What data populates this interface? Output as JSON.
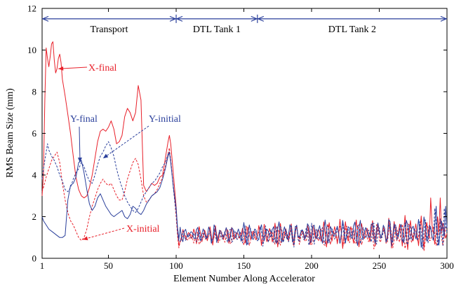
{
  "chart_data": {
    "type": "line",
    "xlabel": "Element Number Along Accelerator",
    "ylabel": "RMS Beam Size (mm)",
    "xlim": [
      1,
      300
    ],
    "ylim": [
      0,
      12
    ],
    "xticks": [
      1,
      50,
      100,
      150,
      200,
      250,
      300
    ],
    "yticks": [
      0,
      2,
      4,
      6,
      8,
      10,
      12
    ],
    "grid": false,
    "regions": [
      {
        "label": "Transport",
        "from": 1,
        "to": 100
      },
      {
        "label": "DTL Tank 1",
        "from": 100,
        "to": 160
      },
      {
        "label": "DTL Tank 2",
        "from": 160,
        "to": 300
      }
    ],
    "region_y": 11.5,
    "colors": {
      "x": "#e8202a",
      "y": "#2a3f9b"
    },
    "series": [
      {
        "key": "x-final",
        "color": "#e8202a",
        "style": "solid",
        "transport": [
          [
            1,
            3.0
          ],
          [
            2,
            4.0
          ],
          [
            3,
            7.6
          ],
          [
            4,
            10.1
          ],
          [
            5,
            9.6
          ],
          [
            6,
            9.2
          ],
          [
            7,
            9.7
          ],
          [
            8,
            10.3
          ],
          [
            9,
            10.4
          ],
          [
            10,
            9.5
          ],
          [
            11,
            8.9
          ],
          [
            12,
            9.1
          ],
          [
            13,
            9.6
          ],
          [
            14,
            9.8
          ],
          [
            15,
            9.4
          ],
          [
            16,
            8.6
          ],
          [
            18,
            7.8
          ],
          [
            20,
            6.9
          ],
          [
            22,
            6.0
          ],
          [
            24,
            4.9
          ],
          [
            26,
            3.9
          ],
          [
            28,
            3.3
          ],
          [
            30,
            3.0
          ],
          [
            32,
            2.9
          ],
          [
            34,
            3.0
          ],
          [
            36,
            3.4
          ],
          [
            38,
            4.0
          ],
          [
            40,
            4.8
          ],
          [
            42,
            5.6
          ],
          [
            44,
            6.1
          ],
          [
            46,
            6.2
          ],
          [
            48,
            6.1
          ],
          [
            50,
            6.3
          ],
          [
            52,
            6.6
          ],
          [
            54,
            6.2
          ],
          [
            56,
            5.5
          ],
          [
            58,
            5.6
          ],
          [
            60,
            5.9
          ],
          [
            62,
            6.8
          ],
          [
            64,
            7.2
          ],
          [
            66,
            7.0
          ],
          [
            68,
            6.6
          ],
          [
            70,
            7.0
          ],
          [
            72,
            8.3
          ],
          [
            74,
            7.6
          ],
          [
            75,
            5.5
          ],
          [
            76,
            3.5
          ],
          [
            78,
            3.2
          ],
          [
            80,
            3.4
          ],
          [
            82,
            3.6
          ],
          [
            84,
            3.5
          ],
          [
            86,
            3.6
          ],
          [
            88,
            3.9
          ],
          [
            90,
            4.0
          ],
          [
            92,
            4.8
          ],
          [
            94,
            5.6
          ],
          [
            95,
            5.9
          ],
          [
            96,
            5.5
          ],
          [
            98,
            4.0
          ],
          [
            100,
            2.5
          ],
          [
            101,
            1.3
          ],
          [
            102,
            0.6
          ]
        ],
        "osc": {
          "from": 102,
          "to": 300,
          "base": 1.1,
          "amp0": 0.35,
          "amp1": 0.85,
          "period": 4.0,
          "phase": 0.0,
          "peak": 2.9
        }
      },
      {
        "key": "x-initial",
        "color": "#e8202a",
        "style": "dashed",
        "transport": [
          [
            1,
            3.2
          ],
          [
            2,
            3.4
          ],
          [
            4,
            3.9
          ],
          [
            6,
            4.3
          ],
          [
            8,
            4.7
          ],
          [
            10,
            4.9
          ],
          [
            12,
            5.1
          ],
          [
            14,
            4.6
          ],
          [
            16,
            3.6
          ],
          [
            18,
            2.8
          ],
          [
            20,
            2.2
          ],
          [
            22,
            1.8
          ],
          [
            24,
            1.6
          ],
          [
            26,
            1.3
          ],
          [
            28,
            1.0
          ],
          [
            30,
            0.85
          ],
          [
            32,
            1.0
          ],
          [
            34,
            1.4
          ],
          [
            36,
            2.0
          ],
          [
            38,
            2.5
          ],
          [
            40,
            2.9
          ],
          [
            42,
            3.3
          ],
          [
            44,
            3.6
          ],
          [
            46,
            3.8
          ],
          [
            48,
            3.6
          ],
          [
            50,
            3.5
          ],
          [
            52,
            3.6
          ],
          [
            54,
            3.3
          ],
          [
            56,
            3.0
          ],
          [
            58,
            2.8
          ],
          [
            60,
            2.8
          ],
          [
            62,
            3.2
          ],
          [
            64,
            3.8
          ],
          [
            66,
            4.2
          ],
          [
            68,
            4.6
          ],
          [
            70,
            4.8
          ],
          [
            72,
            4.5
          ],
          [
            74,
            3.8
          ],
          [
            76,
            3.0
          ],
          [
            78,
            2.7
          ],
          [
            80,
            2.8
          ],
          [
            82,
            3.0
          ],
          [
            84,
            3.1
          ],
          [
            86,
            3.3
          ],
          [
            88,
            3.6
          ],
          [
            90,
            3.9
          ],
          [
            92,
            4.4
          ],
          [
            94,
            5.0
          ],
          [
            95,
            5.3
          ],
          [
            96,
            4.7
          ],
          [
            98,
            3.4
          ],
          [
            100,
            2.0
          ],
          [
            101,
            1.1
          ],
          [
            102,
            0.5
          ]
        ],
        "osc": {
          "from": 102,
          "to": 300,
          "base": 1.0,
          "amp0": 0.3,
          "amp1": 0.8,
          "period": 4.6,
          "phase": 1.3,
          "peak": 2.7
        }
      },
      {
        "key": "y-final",
        "color": "#2a3f9b",
        "style": "solid",
        "transport": [
          [
            1,
            2.0
          ],
          [
            2,
            1.8
          ],
          [
            4,
            1.6
          ],
          [
            6,
            1.4
          ],
          [
            8,
            1.3
          ],
          [
            10,
            1.2
          ],
          [
            12,
            1.1
          ],
          [
            14,
            1.0
          ],
          [
            16,
            1.0
          ],
          [
            18,
            1.1
          ],
          [
            20,
            2.8
          ],
          [
            22,
            3.5
          ],
          [
            24,
            3.6
          ],
          [
            26,
            3.9
          ],
          [
            28,
            4.6
          ],
          [
            30,
            4.7
          ],
          [
            32,
            4.1
          ],
          [
            34,
            3.3
          ],
          [
            36,
            2.6
          ],
          [
            38,
            2.3
          ],
          [
            40,
            2.5
          ],
          [
            42,
            2.9
          ],
          [
            44,
            3.1
          ],
          [
            46,
            2.8
          ],
          [
            48,
            2.5
          ],
          [
            50,
            2.3
          ],
          [
            52,
            2.1
          ],
          [
            54,
            2.0
          ],
          [
            56,
            2.1
          ],
          [
            58,
            2.2
          ],
          [
            60,
            2.3
          ],
          [
            62,
            2.0
          ],
          [
            64,
            1.9
          ],
          [
            66,
            2.1
          ],
          [
            68,
            2.5
          ],
          [
            70,
            2.4
          ],
          [
            72,
            2.2
          ],
          [
            74,
            2.1
          ],
          [
            76,
            2.3
          ],
          [
            78,
            2.6
          ],
          [
            80,
            2.8
          ],
          [
            82,
            3.0
          ],
          [
            84,
            3.1
          ],
          [
            86,
            3.2
          ],
          [
            88,
            3.4
          ],
          [
            90,
            3.8
          ],
          [
            92,
            4.3
          ],
          [
            94,
            4.9
          ],
          [
            95,
            5.1
          ],
          [
            96,
            4.6
          ],
          [
            98,
            3.4
          ],
          [
            100,
            2.4
          ],
          [
            101,
            1.5
          ],
          [
            102,
            0.9
          ]
        ],
        "osc": {
          "from": 102,
          "to": 300,
          "base": 1.15,
          "amp0": 0.4,
          "amp1": 0.75,
          "period": 4.3,
          "phase": 2.4,
          "peak": 2.5
        }
      },
      {
        "key": "y-initial",
        "color": "#2a3f9b",
        "style": "dashed",
        "transport": [
          [
            1,
            3.8
          ],
          [
            2,
            4.3
          ],
          [
            4,
            5.1
          ],
          [
            5,
            5.5
          ],
          [
            6,
            5.2
          ],
          [
            8,
            4.9
          ],
          [
            10,
            4.7
          ],
          [
            12,
            4.4
          ],
          [
            14,
            4.0
          ],
          [
            16,
            3.7
          ],
          [
            18,
            3.3
          ],
          [
            20,
            3.2
          ],
          [
            22,
            3.4
          ],
          [
            24,
            3.8
          ],
          [
            26,
            4.1
          ],
          [
            28,
            4.3
          ],
          [
            30,
            4.6
          ],
          [
            32,
            4.4
          ],
          [
            34,
            4.0
          ],
          [
            36,
            3.7
          ],
          [
            38,
            3.6
          ],
          [
            40,
            4.0
          ],
          [
            42,
            4.5
          ],
          [
            44,
            4.9
          ],
          [
            46,
            5.1
          ],
          [
            48,
            5.4
          ],
          [
            50,
            5.6
          ],
          [
            52,
            5.3
          ],
          [
            54,
            4.9
          ],
          [
            56,
            4.3
          ],
          [
            58,
            3.8
          ],
          [
            60,
            3.4
          ],
          [
            62,
            3.0
          ],
          [
            64,
            2.7
          ],
          [
            66,
            2.5
          ],
          [
            68,
            2.3
          ],
          [
            70,
            2.2
          ],
          [
            72,
            2.4
          ],
          [
            74,
            2.7
          ],
          [
            76,
            3.0
          ],
          [
            78,
            3.2
          ],
          [
            80,
            3.4
          ],
          [
            82,
            3.6
          ],
          [
            84,
            3.7
          ],
          [
            86,
            3.9
          ],
          [
            88,
            4.1
          ],
          [
            90,
            4.4
          ],
          [
            92,
            4.6
          ],
          [
            94,
            5.0
          ],
          [
            95,
            5.1
          ],
          [
            96,
            4.7
          ],
          [
            98,
            3.3
          ],
          [
            100,
            2.2
          ],
          [
            101,
            1.3
          ],
          [
            102,
            0.8
          ]
        ],
        "osc": {
          "from": 102,
          "to": 300,
          "base": 1.05,
          "amp0": 0.35,
          "amp1": 0.75,
          "period": 3.8,
          "phase": 3.5,
          "peak": 2.4
        }
      }
    ],
    "annotations": [
      {
        "text": "X-final",
        "color": "#e8202a",
        "target": [
          13,
          9.1
        ]
      },
      {
        "text": "X-initial",
        "color": "#e8202a",
        "target": [
          31,
          0.9
        ]
      },
      {
        "text": "Y-final",
        "color": "#2a3f9b",
        "target": [
          29,
          4.6
        ]
      },
      {
        "text": "Y-initial",
        "color": "#2a3f9b",
        "target": [
          46,
          4.8
        ]
      }
    ]
  }
}
